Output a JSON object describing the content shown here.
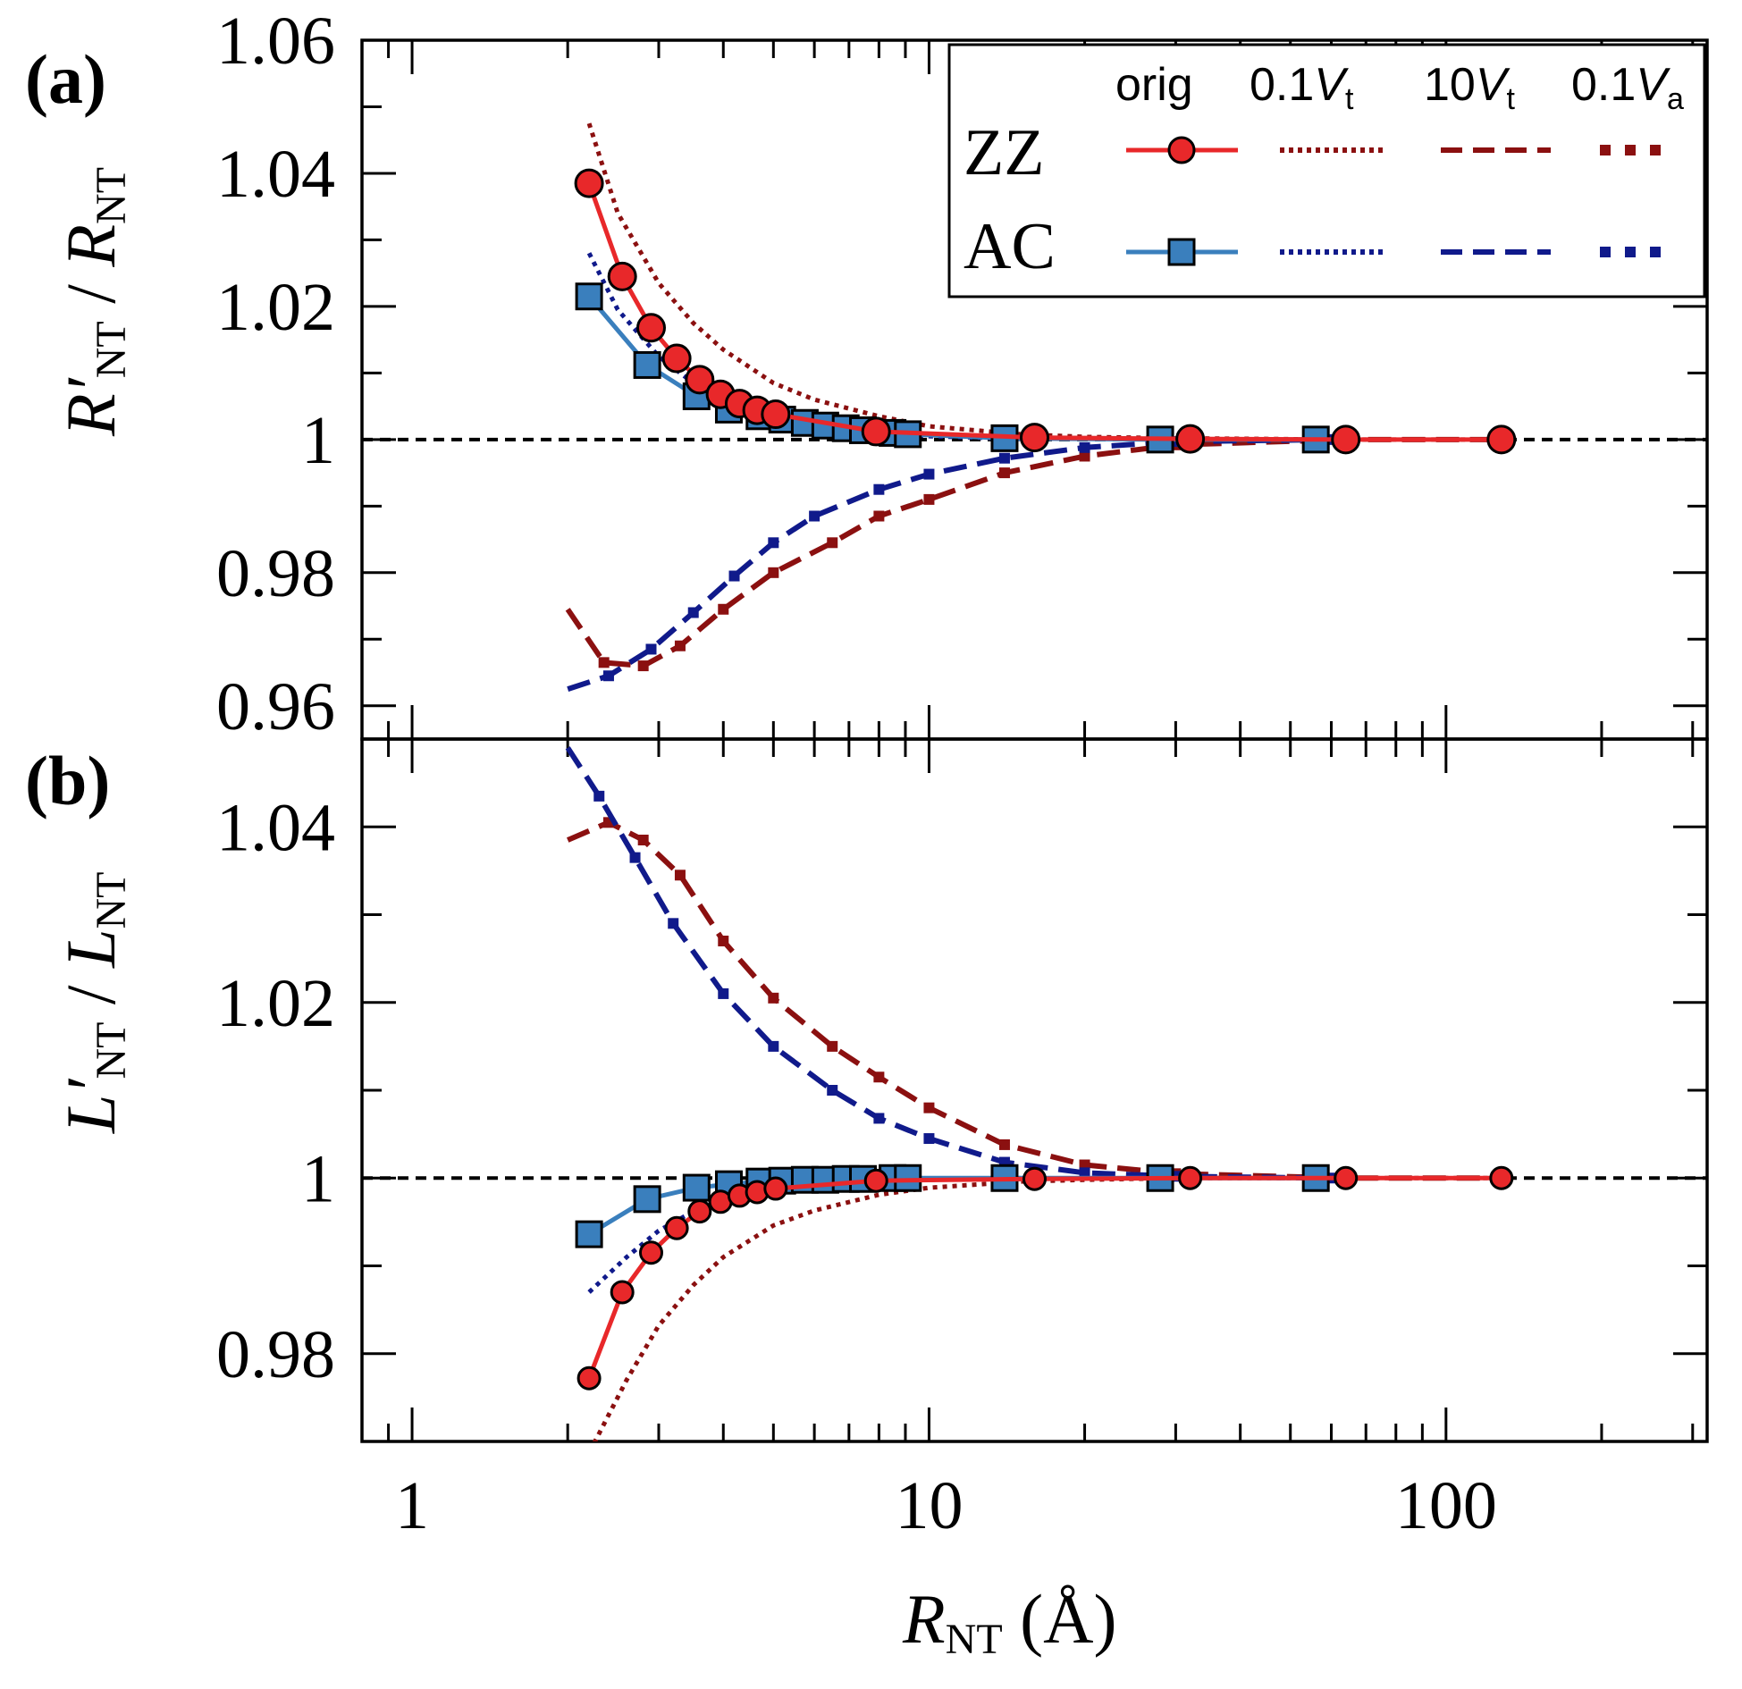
{
  "chart_data": [
    {
      "panel": "(a)",
      "type": "line",
      "ylabel": {
        "main": "R′",
        "sub1": "NT",
        "sep": " / ",
        "main2": "R",
        "sub2": "NT"
      },
      "xscale": "log",
      "xlim": [
        0.8,
        320
      ],
      "ylim": [
        0.955,
        1.06
      ],
      "yticks": [
        0.96,
        0.98,
        1,
        1.02,
        1.04,
        1.06
      ],
      "ytick_labels": [
        "0.96",
        "0.98",
        "1",
        "1.02",
        "1.04",
        "1.06"
      ],
      "reference_line": 1,
      "series": [
        {
          "name": "ZZ orig",
          "color": "#e8282a",
          "style": "solid",
          "marker": "circle",
          "x": [
            2.2,
            2.55,
            2.9,
            3.25,
            3.6,
            3.95,
            4.3,
            4.65,
            5.05,
            7.9,
            16.0,
            32.0,
            64.0,
            128.0
          ],
          "y": [
            1.0385,
            1.0245,
            1.0168,
            1.0122,
            1.009,
            1.0068,
            1.0054,
            1.0044,
            1.0038,
            1.0012,
            1.0003,
            1.0001,
            1.0,
            1.0
          ]
        },
        {
          "name": "AC orig",
          "color": "#3a7fbd",
          "style": "solid",
          "marker": "square",
          "x": [
            2.2,
            2.85,
            3.55,
            4.1,
            4.7,
            5.2,
            5.75,
            6.3,
            6.9,
            7.45,
            8.5,
            9.1,
            14.0,
            28.0,
            56.0
          ],
          "y": [
            1.0215,
            1.0112,
            1.0065,
            1.0045,
            1.0035,
            1.003,
            1.0025,
            1.0021,
            1.0017,
            1.0014,
            1.001,
            1.0008,
            1.0002,
            1.0,
            1.0
          ]
        },
        {
          "name": "ZZ 0.1Vt",
          "color": "#8b1010",
          "style": "dotted",
          "marker": "none",
          "x": [
            2.2,
            2.5,
            3.0,
            3.5,
            4.0,
            5.0,
            6.0,
            8.0,
            10.0,
            15.0,
            20.0,
            30.0,
            64.0,
            130.0
          ],
          "y": [
            1.0475,
            1.034,
            1.0235,
            1.0175,
            1.0135,
            1.0085,
            1.006,
            1.0035,
            1.002,
            1.0008,
            1.0004,
            1.0002,
            1.0,
            1.0
          ]
        },
        {
          "name": "AC 0.1Vt",
          "color": "#101a8b",
          "style": "dotted",
          "marker": "none",
          "x": [
            2.2,
            2.5,
            3.0,
            3.5,
            4.0,
            5.0,
            6.0,
            8.0,
            10.0,
            15.0
          ],
          "y": [
            1.028,
            1.0195,
            1.0125,
            1.0085,
            1.006,
            1.0035,
            1.0022,
            1.001,
            1.0005,
            1.0001
          ]
        },
        {
          "name": "ZZ 10Vt",
          "color": "#8b1010",
          "style": "dashed",
          "marker": "none",
          "x": [
            2.0,
            2.35,
            2.8,
            3.3,
            4.0,
            5.0,
            6.5,
            8.0,
            10.0,
            14.0,
            20.0,
            30.0,
            64.0,
            130.0
          ],
          "y": [
            0.9745,
            0.9665,
            0.966,
            0.969,
            0.9745,
            0.98,
            0.9845,
            0.9885,
            0.991,
            0.995,
            0.9975,
            0.9992,
            1.0,
            1.0
          ]
        },
        {
          "name": "AC 10Vt",
          "color": "#101a8b",
          "style": "dashed",
          "marker": "none",
          "x": [
            2.0,
            2.4,
            2.9,
            3.5,
            4.2,
            5.0,
            6.0,
            8.0,
            10.0,
            14.0,
            20.0,
            30.0,
            60.0
          ],
          "y": [
            0.9625,
            0.9645,
            0.9685,
            0.974,
            0.9795,
            0.9845,
            0.9885,
            0.9925,
            0.9948,
            0.9972,
            0.9988,
            0.9997,
            1.0
          ]
        }
      ],
      "legend": {
        "placement": "top-right",
        "headers": [
          "orig",
          "0.1",
          "V",
          "t",
          "10",
          "V",
          "t",
          "0.1",
          "V",
          "a"
        ],
        "rows": [
          "ZZ",
          "AC"
        ]
      }
    },
    {
      "panel": "(b)",
      "type": "line",
      "xlabel": {
        "main": "R",
        "sub": "NT",
        "unit": " (Å)"
      },
      "ylabel": {
        "main": "L′",
        "sub1": "NT",
        "sep": " / ",
        "main2": "L",
        "sub2": "NT"
      },
      "xscale": "log",
      "xlim": [
        0.8,
        320
      ],
      "ylim": [
        0.97,
        1.05
      ],
      "yticks": [
        0.98,
        1,
        1.02,
        1.04
      ],
      "ytick_labels": [
        "0.98",
        "1",
        "1.02",
        "1.04"
      ],
      "xticks": [
        1,
        10,
        100
      ],
      "xtick_labels": [
        "1",
        "10",
        "100"
      ],
      "reference_line": 1,
      "series": [
        {
          "name": "ZZ orig",
          "color": "#e8282a",
          "style": "solid",
          "marker": "circle",
          "x": [
            2.2,
            2.55,
            2.9,
            3.25,
            3.6,
            3.95,
            4.3,
            4.65,
            5.05,
            7.9,
            16.0,
            32.0,
            64.0,
            128.0
          ],
          "y": [
            0.9772,
            0.987,
            0.9915,
            0.9943,
            0.9962,
            0.9973,
            0.998,
            0.9984,
            0.9988,
            0.9997,
            0.9999,
            1.0,
            1.0,
            1.0
          ]
        },
        {
          "name": "AC orig",
          "color": "#3a7fbd",
          "style": "solid",
          "marker": "square",
          "x": [
            2.2,
            2.85,
            3.55,
            4.1,
            4.7,
            5.2,
            5.75,
            6.3,
            6.9,
            7.45,
            8.5,
            9.1,
            14.0,
            28.0,
            56.0
          ],
          "y": [
            0.9936,
            0.9976,
            0.9989,
            0.9993,
            0.9996,
            0.9997,
            0.9998,
            0.9998,
            0.9999,
            0.9999,
            1.0,
            1.0,
            1.0,
            1.0,
            1.0
          ]
        },
        {
          "name": "ZZ 0.1Vt",
          "color": "#8b1010",
          "style": "dotted",
          "marker": "none",
          "x": [
            2.25,
            2.6,
            3.0,
            3.5,
            4.0,
            5.0,
            6.0,
            8.0,
            10.0,
            15.0,
            20.0,
            30.0,
            64.0,
            130.0
          ],
          "y": [
            0.9698,
            0.977,
            0.9832,
            0.9878,
            0.991,
            0.9946,
            0.9963,
            0.9981,
            0.9989,
            0.9996,
            0.9998,
            1.0,
            1.0,
            1.0
          ]
        },
        {
          "name": "AC 0.1Vt",
          "color": "#101a8b",
          "style": "dotted",
          "marker": "none",
          "x": [
            2.2,
            2.6,
            3.0,
            3.5,
            4.0,
            5.0,
            6.0,
            8.0,
            10.0,
            15.0
          ],
          "y": [
            0.987,
            0.991,
            0.994,
            0.9962,
            0.9975,
            0.9987,
            0.9992,
            0.9996,
            0.9998,
            1.0
          ]
        },
        {
          "name": "ZZ 10Vt",
          "color": "#8b1010",
          "style": "dashed",
          "marker": "none",
          "x": [
            2.0,
            2.4,
            2.8,
            3.3,
            4.0,
            5.0,
            6.5,
            8.0,
            10.0,
            14.0,
            20.0,
            30.0,
            64.0,
            130.0
          ],
          "y": [
            1.0385,
            1.0405,
            1.0385,
            1.0345,
            1.027,
            1.0205,
            1.015,
            1.0115,
            1.008,
            1.0038,
            1.0015,
            1.0005,
            1.0,
            1.0
          ]
        },
        {
          "name": "AC 10Vt",
          "color": "#101a8b",
          "style": "dashed",
          "marker": "none",
          "x": [
            2.0,
            2.3,
            2.7,
            3.2,
            4.0,
            5.0,
            6.5,
            8.0,
            10.0,
            14.0,
            20.0,
            30.0,
            60.0
          ],
          "y": [
            1.049,
            1.0435,
            1.0365,
            1.029,
            1.021,
            1.015,
            1.01,
            1.0068,
            1.0045,
            1.0018,
            1.0006,
            1.0002,
            1.0
          ]
        }
      ]
    }
  ]
}
